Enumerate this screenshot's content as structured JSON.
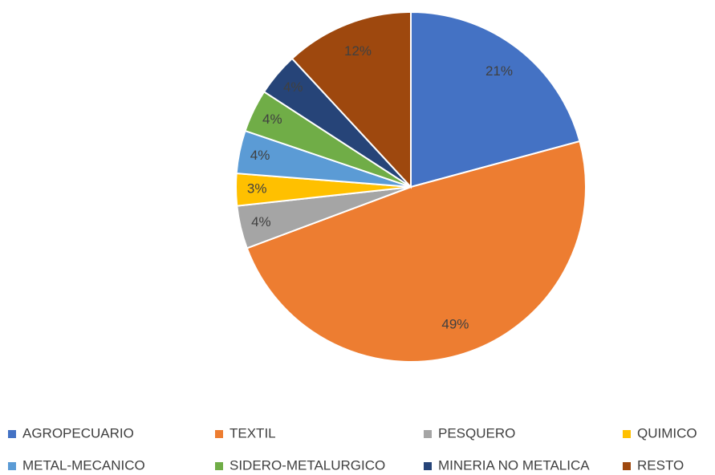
{
  "chart_data": {
    "type": "pie",
    "categories": [
      "AGROPECUARIO",
      "TEXTIL",
      "PESQUERO",
      "QUIMICO",
      "METAL-MECANICO",
      "SIDERO-METALURGICO",
      "MINERIA NO METALICA",
      "RESTO"
    ],
    "values": [
      21,
      49,
      4,
      3,
      4,
      4,
      4,
      12
    ],
    "value_labels": [
      "21%",
      "49%",
      "4%",
      "3%",
      "4%",
      "4%",
      "4%",
      "12%"
    ],
    "colors": [
      "#4472c4",
      "#ed7d31",
      "#a5a5a5",
      "#ffc000",
      "#5b9bd5",
      "#70ad47",
      "#264478",
      "#9e480e"
    ],
    "legend": "bottom"
  }
}
